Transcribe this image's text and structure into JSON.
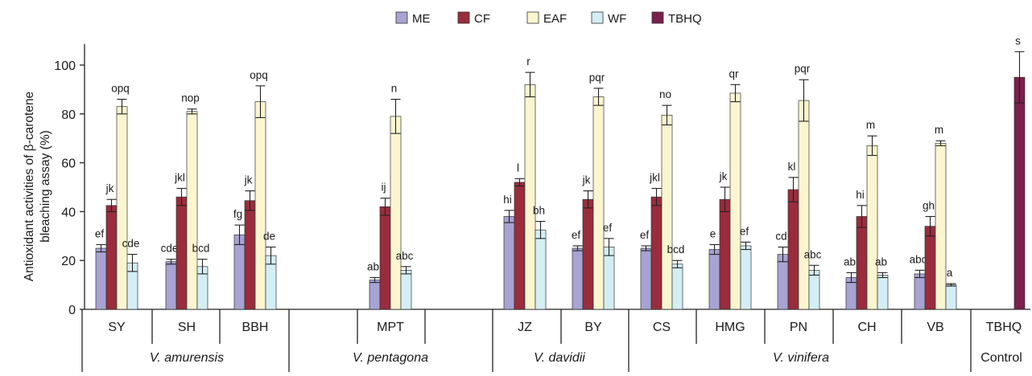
{
  "chart_data": {
    "type": "bar",
    "ylabel": "Antioxidant activities of β-carotene bleaching assay (%)",
    "ylabel_lines": [
      "Antioxidant activities of β-carotene",
      "bleaching assay (%)"
    ],
    "ylim": [
      0,
      100
    ],
    "yticks": [
      0,
      20,
      40,
      60,
      80,
      100
    ],
    "legend_position": "top-center",
    "series": [
      {
        "name": "ME",
        "color": "#a7a3d3"
      },
      {
        "name": "CF",
        "color": "#9a2c3c"
      },
      {
        "name": "EAF",
        "color": "#fbf6cf"
      },
      {
        "name": "WF",
        "color": "#d4eef5"
      },
      {
        "name": "TBHQ",
        "color": "#7b1f4c"
      }
    ],
    "categories": [
      {
        "label": "SY",
        "values": {
          "ME": 25,
          "CF": 42.5,
          "EAF": 83,
          "WF": 19
        },
        "errors": {
          "ME": 1.5,
          "CF": 2.5,
          "EAF": 3,
          "WF": 3.5
        },
        "letters": {
          "ME": "ef",
          "CF": "jk",
          "EAF": "opq",
          "WF": "cde"
        }
      },
      {
        "label": "SH",
        "values": {
          "ME": 19.5,
          "CF": 46,
          "EAF": 81,
          "WF": 17.5
        },
        "errors": {
          "ME": 1,
          "CF": 3.5,
          "EAF": 1,
          "WF": 3
        },
        "letters": {
          "ME": "cde",
          "CF": "jkl",
          "EAF": "nop",
          "WF": "bcd"
        }
      },
      {
        "label": "BBH",
        "values": {
          "ME": 30.5,
          "CF": 44.5,
          "EAF": 85,
          "WF": 22
        },
        "errors": {
          "ME": 4,
          "CF": 4,
          "EAF": 6.5,
          "WF": 3.5
        },
        "letters": {
          "ME": "fg",
          "CF": "jk",
          "EAF": "opq",
          "WF": "de"
        }
      },
      {
        "label": "MPT",
        "values": {
          "ME": 12,
          "CF": 42,
          "EAF": 79,
          "WF": 16
        },
        "errors": {
          "ME": 1,
          "CF": 3.5,
          "EAF": 7,
          "WF": 1.5
        },
        "letters": {
          "ME": "ab",
          "CF": "ij",
          "EAF": "n",
          "WF": "abc"
        }
      },
      {
        "label": "JZ",
        "values": {
          "ME": 38,
          "CF": 52,
          "EAF": 92,
          "WF": 32.5
        },
        "errors": {
          "ME": 2.5,
          "CF": 1.5,
          "EAF": 5,
          "WF": 3.5
        },
        "letters": {
          "ME": "hi",
          "CF": "l",
          "EAF": "r",
          "WF": "bh"
        }
      },
      {
        "label": "BY",
        "values": {
          "ME": 25,
          "CF": 45,
          "EAF": 87,
          "WF": 25.5
        },
        "errors": {
          "ME": 1,
          "CF": 3.5,
          "EAF": 3.5,
          "WF": 3.5
        },
        "letters": {
          "ME": "ef",
          "CF": "jk",
          "EAF": "pqr",
          "WF": "ef"
        }
      },
      {
        "label": "CS",
        "values": {
          "ME": 25,
          "CF": 46,
          "EAF": 79.5,
          "WF": 18.5
        },
        "errors": {
          "ME": 1,
          "CF": 3.5,
          "EAF": 4,
          "WF": 1.5
        },
        "letters": {
          "ME": "ef",
          "CF": "jkl",
          "EAF": "no",
          "WF": "bcd"
        }
      },
      {
        "label": "HMG",
        "values": {
          "ME": 24.5,
          "CF": 45,
          "EAF": 88.5,
          "WF": 26
        },
        "errors": {
          "ME": 2,
          "CF": 5,
          "EAF": 3.5,
          "WF": 1.5
        },
        "letters": {
          "ME": "e",
          "CF": "jk",
          "EAF": "qr",
          "WF": "ef"
        }
      },
      {
        "label": "PN",
        "values": {
          "ME": 22.5,
          "CF": 49,
          "EAF": 85.5,
          "WF": 16
        },
        "errors": {
          "ME": 3,
          "CF": 5,
          "EAF": 8.5,
          "WF": 2
        },
        "letters": {
          "ME": "cd",
          "CF": "kl",
          "EAF": "pqr",
          "WF": "abc"
        }
      },
      {
        "label": "CH",
        "values": {
          "ME": 13,
          "CF": 38,
          "EAF": 67,
          "WF": 14
        },
        "errors": {
          "ME": 2,
          "CF": 4.5,
          "EAF": 4,
          "WF": 1
        },
        "letters": {
          "ME": "ab",
          "CF": "hi",
          "EAF": "m",
          "WF": "ab"
        }
      },
      {
        "label": "VB",
        "values": {
          "ME": 14.5,
          "CF": 34,
          "EAF": 68,
          "WF": 10
        },
        "errors": {
          "ME": 1.5,
          "CF": 4,
          "EAF": 1,
          "WF": 0.5
        },
        "letters": {
          "ME": "abc",
          "CF": "gh",
          "EAF": "m",
          "WF": "a"
        }
      },
      {
        "label": "TBHQ",
        "values": {
          "TBHQ": 95
        },
        "errors": {
          "TBHQ": 10.5
        },
        "letters": {
          "TBHQ": "s"
        }
      }
    ],
    "groups": [
      {
        "label": "V. amurensis",
        "italic": true,
        "categories": [
          "SY",
          "SH",
          "BBH"
        ]
      },
      {
        "label": "V. pentagona",
        "italic": true,
        "categories": [
          "MPT"
        ]
      },
      {
        "label": "V. davidii",
        "italic": true,
        "categories": [
          "JZ",
          "BY"
        ]
      },
      {
        "label": "V. vinifera",
        "italic": true,
        "categories": [
          "CS",
          "HMG",
          "PN",
          "CH",
          "VB"
        ]
      },
      {
        "label": "Control",
        "italic": false,
        "categories": [
          "TBHQ"
        ]
      }
    ]
  }
}
